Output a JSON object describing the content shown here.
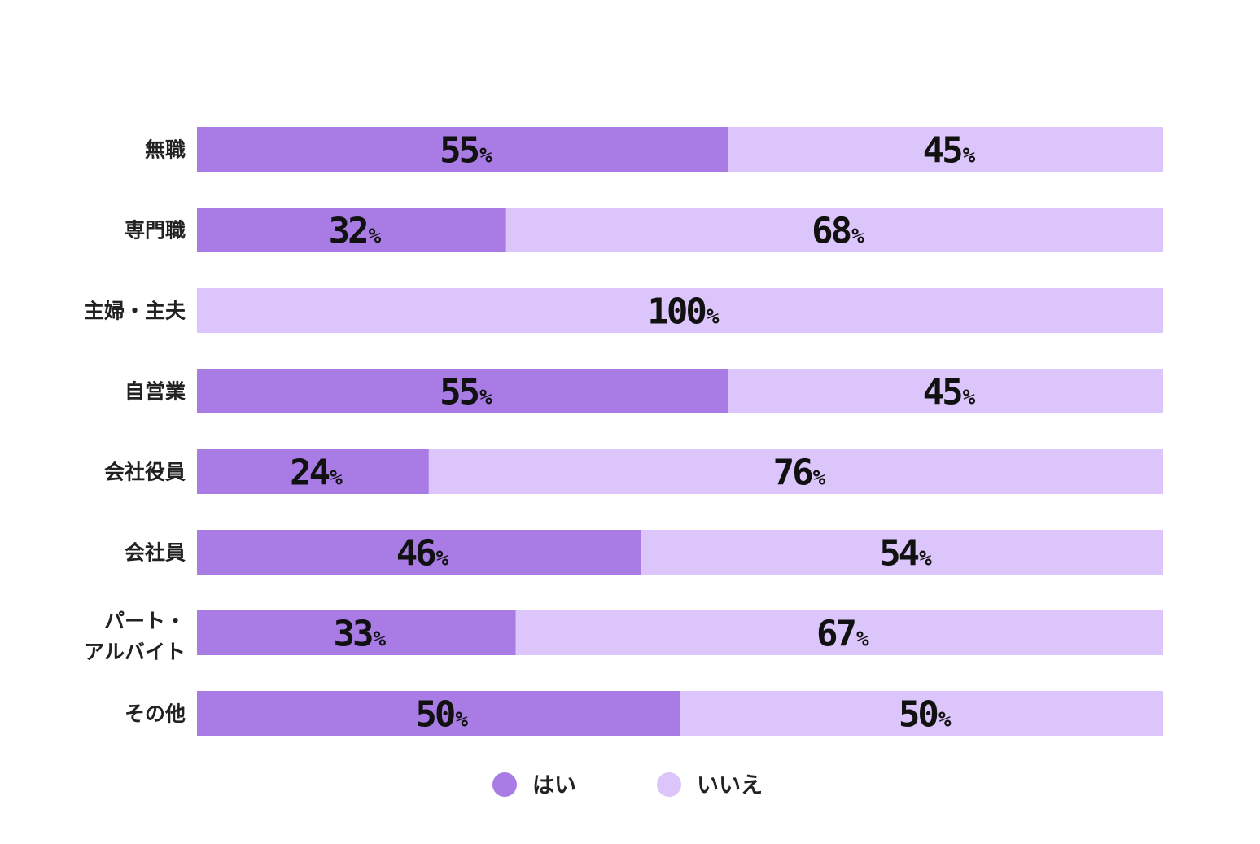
{
  "chart_data": {
    "type": "bar",
    "orientation": "horizontal",
    "stacked": true,
    "percent_axis": [
      0,
      100
    ],
    "categories": [
      "無職",
      "専門職",
      "主婦・主夫",
      "自営業",
      "会社役員",
      "会社員",
      "パート・アルバイト",
      "その他"
    ],
    "category_lines": [
      [
        "無職"
      ],
      [
        "専門職"
      ],
      [
        "主婦・主夫"
      ],
      [
        "自営業"
      ],
      [
        "会社役員"
      ],
      [
        "会社員"
      ],
      [
        "パート・",
        "アルバイト"
      ],
      [
        "その他"
      ]
    ],
    "series": [
      {
        "name": "はい",
        "color": "#a87ce4",
        "values": [
          55,
          32,
          0,
          55,
          24,
          46,
          33,
          50
        ]
      },
      {
        "name": "いいえ",
        "color": "#dbc5fa",
        "values": [
          45,
          68,
          100,
          45,
          76,
          54,
          67,
          50
        ]
      }
    ],
    "value_suffix": "%",
    "legend_position": "bottom-center",
    "grid": false
  }
}
